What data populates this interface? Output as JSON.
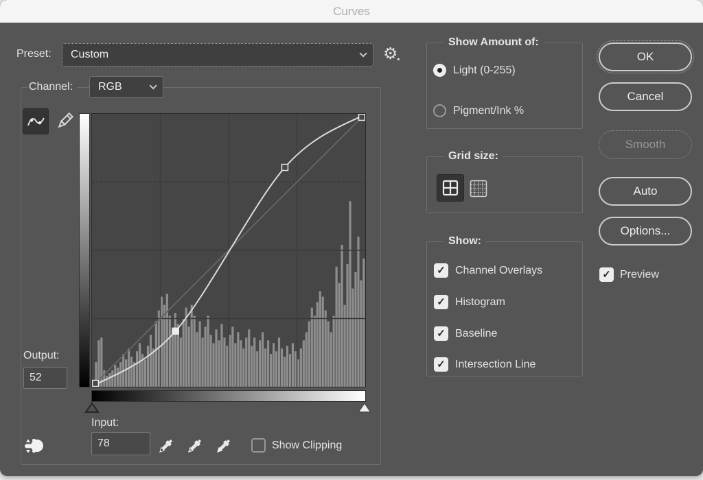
{
  "window": {
    "title": "Curves"
  },
  "preset": {
    "label": "Preset:",
    "value": "Custom"
  },
  "channel": {
    "label": "Channel:",
    "value": "RGB"
  },
  "output": {
    "label": "Output:",
    "value": "52"
  },
  "input": {
    "label": "Input:",
    "value": "78"
  },
  "show_clipping": {
    "label": "Show Clipping",
    "checked": false
  },
  "show_amount": {
    "title": "Show Amount of:",
    "options": [
      {
        "label": "Light  (0-255)",
        "selected": true
      },
      {
        "label": "Pigment/Ink %",
        "selected": false
      }
    ]
  },
  "grid_size": {
    "title": "Grid size:",
    "options": [
      {
        "name": "coarse-grid",
        "selected": true
      },
      {
        "name": "fine-grid",
        "selected": false
      }
    ]
  },
  "show": {
    "title": "Show:",
    "items": [
      {
        "label": "Channel Overlays",
        "checked": true
      },
      {
        "label": "Histogram",
        "checked": true
      },
      {
        "label": "Baseline",
        "checked": true
      },
      {
        "label": "Intersection Line",
        "checked": true
      }
    ]
  },
  "buttons": {
    "ok": "OK",
    "cancel": "Cancel",
    "smooth": "Smooth",
    "smooth_disabled": true,
    "auto": "Auto",
    "options": "Options..."
  },
  "preview": {
    "label": "Preview",
    "checked": true
  },
  "colors": {
    "dialog_bg": "#555555",
    "grid_bg": "#464646",
    "histogram": "#8e8e8e",
    "baseline": "#646464",
    "curve": "#dcdcdc",
    "gridline": "#3b3b3b",
    "point_fill_selected": "#ededed",
    "point_fill_hollow": "#474747"
  },
  "chart_data": {
    "type": "curves-histogram",
    "x_label": "Input",
    "y_label": "Output",
    "x_range": [
      0,
      255
    ],
    "y_range": [
      0,
      255
    ],
    "grid_divisions": 4,
    "legend_position": "none",
    "baseline": {
      "from": [
        0,
        0
      ],
      "to": [
        255,
        255
      ]
    },
    "curve_points": [
      {
        "input": 0,
        "output": 0,
        "selected": false
      },
      {
        "input": 78,
        "output": 52,
        "selected": true
      },
      {
        "input": 180,
        "output": 205,
        "selected": false
      },
      {
        "input": 255,
        "output": 255,
        "selected": false
      }
    ],
    "histogram_percent": [
      2,
      9,
      17,
      18,
      6,
      4,
      5,
      6,
      8,
      7,
      9,
      12,
      10,
      14,
      11,
      9,
      13,
      16,
      12,
      10,
      15,
      19,
      14,
      24,
      28,
      33,
      30,
      34,
      26,
      21,
      27,
      23,
      18,
      25,
      29,
      22,
      30,
      26,
      20,
      24,
      18,
      22,
      26,
      19,
      16,
      21,
      17,
      23,
      18,
      15,
      19,
      22,
      16,
      20,
      17,
      14,
      18,
      21,
      15,
      18,
      13,
      17,
      20,
      14,
      17,
      12,
      16,
      13,
      18,
      14,
      11,
      15,
      12,
      16,
      13,
      10,
      14,
      17,
      20,
      24,
      29,
      26,
      31,
      35,
      33,
      28,
      24,
      20,
      26,
      44,
      38,
      52,
      30,
      45,
      68,
      36,
      42,
      55,
      39,
      47
    ]
  }
}
